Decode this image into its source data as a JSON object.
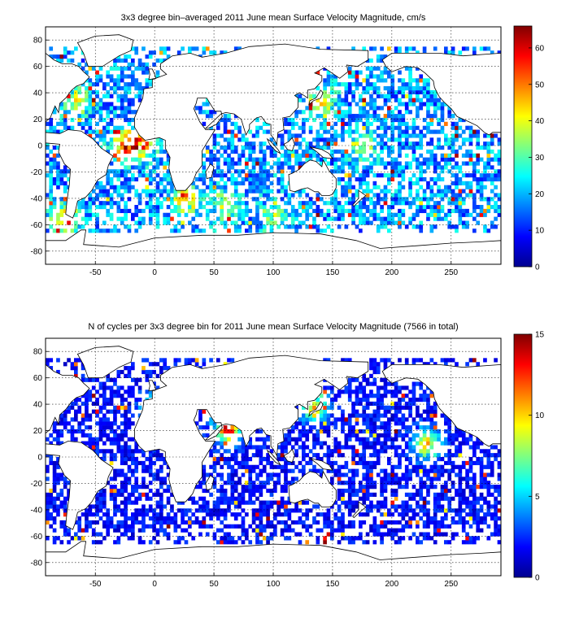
{
  "chart_data": [
    {
      "type": "heatmap",
      "title": "3x3 degree bin–averaged 2011 June mean Surface Velocity Magnitude, cm/s",
      "xlabel": "",
      "ylabel": "",
      "xlim": [
        -92,
        292
      ],
      "ylim": [
        -90,
        90
      ],
      "xticks": [
        -50,
        0,
        50,
        100,
        150,
        200,
        250
      ],
      "yticks": [
        -80,
        -60,
        -40,
        -20,
        0,
        20,
        40,
        60,
        80
      ],
      "bin_size_deg": 3,
      "colormap": "jet",
      "colorbar": {
        "min": 0,
        "max": 66,
        "ticks": [
          0,
          10,
          20,
          30,
          40,
          50,
          60
        ]
      },
      "grid": true,
      "hotspots": [
        {
          "lon": -25,
          "lat": 0,
          "value": 60
        },
        {
          "lon": -10,
          "lat": 2,
          "value": 55
        },
        {
          "lon": -75,
          "lat": -55,
          "value": 58
        },
        {
          "lon": 25,
          "lat": -40,
          "value": 55
        },
        {
          "lon": 60,
          "lat": -45,
          "value": 45
        },
        {
          "lon": 140,
          "lat": 35,
          "value": 50
        },
        {
          "lon": 175,
          "lat": 0,
          "value": 40
        },
        {
          "lon": 100,
          "lat": -55,
          "value": 38
        },
        {
          "lon": -65,
          "lat": 35,
          "value": 45
        }
      ],
      "background_value": 18
    },
    {
      "type": "heatmap",
      "title": "N of cycles per 3x3 degree bin for 2011 June mean Surface Velocity Magnitude (7566 in total)",
      "xlabel": "",
      "ylabel": "",
      "xlim": [
        -92,
        292
      ],
      "ylim": [
        -90,
        90
      ],
      "xticks": [
        -50,
        0,
        50,
        100,
        150,
        200,
        250
      ],
      "yticks": [
        -80,
        -60,
        -40,
        -20,
        0,
        20,
        40,
        60,
        80
      ],
      "bin_size_deg": 3,
      "total_cycles": 7566,
      "colormap": "jet",
      "colorbar": {
        "min": 0,
        "max": 15,
        "ticks": [
          0,
          5,
          10,
          15
        ]
      },
      "grid": true,
      "hotspots": [
        {
          "lon": 62,
          "lat": 22,
          "value": 15
        },
        {
          "lon": 135,
          "lat": 38,
          "value": 12
        },
        {
          "lon": 230,
          "lat": 10,
          "value": 12
        },
        {
          "lon": 0,
          "lat": 36,
          "value": 10
        }
      ],
      "background_value": 2
    }
  ]
}
